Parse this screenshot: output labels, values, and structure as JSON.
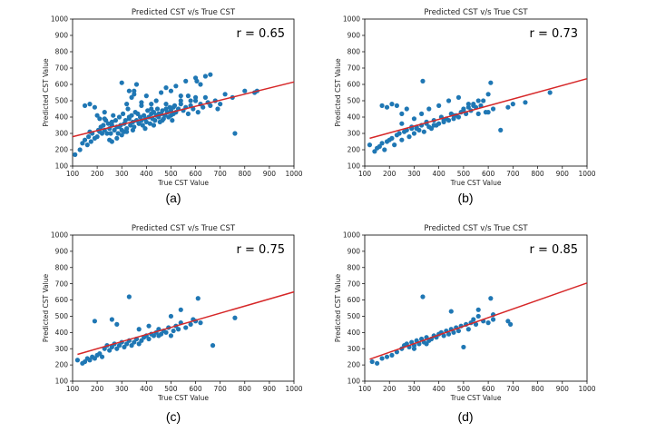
{
  "chart_data": [
    {
      "panel": "(a)",
      "type": "scatter",
      "title": "Predicted CST v/s True CST",
      "xlabel": "True CST Value",
      "ylabel": "Predicted CST Value",
      "xlim": [
        100,
        1000
      ],
      "ylim": [
        100,
        1000
      ],
      "xticks": [
        100,
        200,
        300,
        400,
        500,
        600,
        700,
        800,
        900,
        1000
      ],
      "yticks": [
        100,
        200,
        300,
        400,
        500,
        600,
        700,
        800,
        900,
        1000
      ],
      "annotation": "r = 0.65",
      "point_color": "#1f77b4",
      "fit_color": "#d62728",
      "fit_line": {
        "x": [
          100,
          1000
        ],
        "y": [
          280,
          615
        ]
      },
      "x": [
        110,
        130,
        140,
        150,
        160,
        165,
        170,
        175,
        180,
        190,
        200,
        205,
        210,
        215,
        220,
        225,
        230,
        235,
        240,
        245,
        250,
        255,
        260,
        265,
        270,
        275,
        280,
        285,
        290,
        295,
        300,
        305,
        310,
        315,
        320,
        325,
        330,
        335,
        340,
        345,
        350,
        355,
        360,
        365,
        370,
        375,
        380,
        385,
        390,
        395,
        400,
        405,
        410,
        415,
        420,
        425,
        430,
        435,
        440,
        445,
        450,
        455,
        460,
        465,
        470,
        475,
        480,
        485,
        490,
        495,
        500,
        505,
        510,
        515,
        520,
        530,
        540,
        550,
        560,
        570,
        580,
        590,
        600,
        610,
        620,
        630,
        640,
        650,
        660,
        680,
        700,
        720,
        750,
        760,
        800,
        840,
        850,
        150,
        170,
        190,
        200,
        210,
        230,
        250,
        260,
        280,
        300,
        310,
        320,
        330,
        340,
        350,
        360,
        380,
        400,
        420,
        440,
        460,
        480,
        500,
        520,
        540,
        560,
        580,
        600,
        620,
        300,
        330,
        350,
        380,
        420,
        450,
        480,
        510,
        540,
        570,
        600,
        605,
        640,
        660,
        690,
        230,
        260,
        290,
        320,
        345,
        370,
        395,
        430,
        465,
        500
      ],
      "y": [
        170,
        200,
        240,
        260,
        230,
        280,
        310,
        250,
        300,
        270,
        280,
        320,
        310,
        340,
        300,
        350,
        320,
        380,
        300,
        360,
        330,
        300,
        350,
        410,
        320,
        380,
        340,
        300,
        400,
        350,
        320,
        420,
        360,
        380,
        330,
        450,
        390,
        350,
        410,
        370,
        340,
        430,
        380,
        420,
        360,
        400,
        380,
        350,
        410,
        390,
        370,
        440,
        400,
        360,
        420,
        390,
        430,
        380,
        410,
        450,
        400,
        370,
        420,
        440,
        390,
        410,
        450,
        430,
        400,
        460,
        440,
        380,
        420,
        470,
        430,
        450,
        480,
        440,
        460,
        420,
        470,
        450,
        500,
        430,
        480,
        460,
        520,
        490,
        470,
        500,
        480,
        540,
        520,
        300,
        560,
        550,
        560,
        470,
        480,
        460,
        410,
        390,
        430,
        260,
        250,
        270,
        290,
        310,
        480,
        400,
        520,
        560,
        600,
        490,
        530,
        480,
        500,
        550,
        580,
        560,
        590,
        530,
        620,
        500,
        640,
        600,
        610,
        560,
        540,
        470,
        450,
        420,
        480,
        460,
        500,
        530,
        520,
        620,
        650,
        660,
        450,
        390,
        370,
        340,
        310,
        320,
        360,
        330,
        350,
        380,
        410
      ]
    },
    {
      "panel": "(b)",
      "type": "scatter",
      "title": "Predicted CST v/s True CST",
      "xlabel": "True CST Value",
      "ylabel": "Predicted CST Value",
      "xlim": [
        100,
        1000
      ],
      "ylim": [
        100,
        1000
      ],
      "xticks": [
        100,
        200,
        300,
        400,
        500,
        600,
        700,
        800,
        900,
        1000
      ],
      "yticks": [
        100,
        200,
        300,
        400,
        500,
        600,
        700,
        800,
        900,
        1000
      ],
      "annotation": "r = 0.73",
      "point_color": "#1f77b4",
      "fit_color": "#d62728",
      "fit_line": {
        "x": [
          120,
          1000
        ],
        "y": [
          270,
          635
        ]
      },
      "x": [
        120,
        140,
        150,
        160,
        170,
        180,
        190,
        200,
        210,
        220,
        230,
        240,
        250,
        260,
        270,
        280,
        290,
        300,
        310,
        320,
        330,
        340,
        350,
        360,
        370,
        380,
        390,
        400,
        410,
        420,
        430,
        440,
        450,
        460,
        470,
        480,
        490,
        500,
        510,
        520,
        530,
        540,
        550,
        560,
        570,
        580,
        590,
        600,
        610,
        620,
        650,
        680,
        700,
        750,
        850,
        170,
        190,
        210,
        230,
        250,
        270,
        300,
        330,
        360,
        400,
        440,
        480,
        520,
        560,
        600,
        335,
        250,
        290,
        310,
        350,
        380,
        420,
        460,
        500,
        540
      ],
      "y": [
        230,
        190,
        210,
        220,
        240,
        200,
        250,
        260,
        270,
        230,
        290,
        300,
        260,
        310,
        320,
        280,
        330,
        300,
        340,
        320,
        350,
        310,
        360,
        340,
        330,
        380,
        350,
        360,
        400,
        370,
        390,
        380,
        420,
        390,
        410,
        400,
        430,
        450,
        420,
        460,
        440,
        480,
        460,
        420,
        470,
        500,
        430,
        540,
        610,
        450,
        320,
        460,
        480,
        490,
        550,
        470,
        460,
        480,
        470,
        420,
        450,
        390,
        420,
        450,
        470,
        500,
        520,
        480,
        500,
        430,
        620,
        360,
        340,
        330,
        370,
        350,
        380,
        410,
        440,
        470
      ]
    },
    {
      "panel": "(c)",
      "type": "scatter",
      "title": "Predicted CST v/s True CST",
      "xlabel": "True CST Value",
      "ylabel": "Predicted CST Value",
      "xlim": [
        100,
        1000
      ],
      "ylim": [
        100,
        1000
      ],
      "xticks": [
        100,
        200,
        300,
        400,
        500,
        600,
        700,
        800,
        900,
        1000
      ],
      "yticks": [
        100,
        200,
        300,
        400,
        500,
        600,
        700,
        800,
        900,
        1000
      ],
      "annotation": "r = 0.75",
      "point_color": "#1f77b4",
      "fit_color": "#d62728",
      "fit_line": {
        "x": [
          120,
          1000
        ],
        "y": [
          265,
          650
        ]
      },
      "x": [
        120,
        140,
        150,
        160,
        170,
        180,
        190,
        200,
        210,
        220,
        230,
        240,
        250,
        260,
        270,
        280,
        290,
        300,
        310,
        320,
        330,
        340,
        350,
        360,
        370,
        380,
        390,
        400,
        410,
        420,
        430,
        440,
        450,
        460,
        470,
        480,
        490,
        500,
        510,
        520,
        530,
        540,
        560,
        580,
        600,
        620,
        670,
        760,
        190,
        260,
        280,
        330,
        370,
        410,
        450,
        500,
        540,
        590,
        610
      ],
      "y": [
        230,
        210,
        220,
        240,
        230,
        250,
        240,
        260,
        270,
        250,
        300,
        320,
        290,
        310,
        330,
        300,
        320,
        340,
        310,
        330,
        350,
        320,
        340,
        360,
        330,
        350,
        370,
        380,
        360,
        390,
        380,
        400,
        420,
        390,
        410,
        400,
        430,
        380,
        410,
        440,
        420,
        460,
        430,
        450,
        470,
        460,
        320,
        490,
        470,
        480,
        450,
        620,
        420,
        440,
        380,
        500,
        540,
        480,
        610
      ]
    },
    {
      "panel": "(d)",
      "type": "scatter",
      "title": "Predicted CST v/s True CST",
      "xlabel": "True CST Value",
      "ylabel": "Predicted CST Value",
      "xlim": [
        100,
        1000
      ],
      "ylim": [
        100,
        1000
      ],
      "xticks": [
        100,
        200,
        300,
        400,
        500,
        600,
        700,
        800,
        900,
        1000
      ],
      "yticks": [
        100,
        200,
        300,
        400,
        500,
        600,
        700,
        800,
        900,
        1000
      ],
      "annotation": "r = 0.85",
      "point_color": "#1f77b4",
      "fit_color": "#d62728",
      "fit_line": {
        "x": [
          120,
          1000
        ],
        "y": [
          235,
          705
        ]
      },
      "x": [
        130,
        150,
        170,
        190,
        210,
        230,
        250,
        260,
        270,
        280,
        290,
        300,
        310,
        320,
        330,
        340,
        350,
        360,
        370,
        380,
        390,
        400,
        410,
        420,
        430,
        440,
        450,
        460,
        470,
        480,
        490,
        500,
        510,
        520,
        530,
        540,
        550,
        560,
        580,
        600,
        610,
        620,
        680,
        690,
        335,
        450,
        560,
        620,
        300,
        350
      ],
      "y": [
        220,
        210,
        240,
        250,
        260,
        280,
        300,
        320,
        330,
        310,
        340,
        320,
        350,
        330,
        360,
        340,
        370,
        350,
        360,
        380,
        370,
        390,
        400,
        380,
        410,
        390,
        420,
        400,
        430,
        410,
        440,
        310,
        450,
        420,
        460,
        480,
        450,
        500,
        470,
        460,
        610,
        480,
        470,
        450,
        620,
        530,
        540,
        510,
        300,
        330
      ]
    }
  ],
  "panel_labels": [
    "(a)",
    "(b)",
    "(c)",
    "(d)"
  ]
}
